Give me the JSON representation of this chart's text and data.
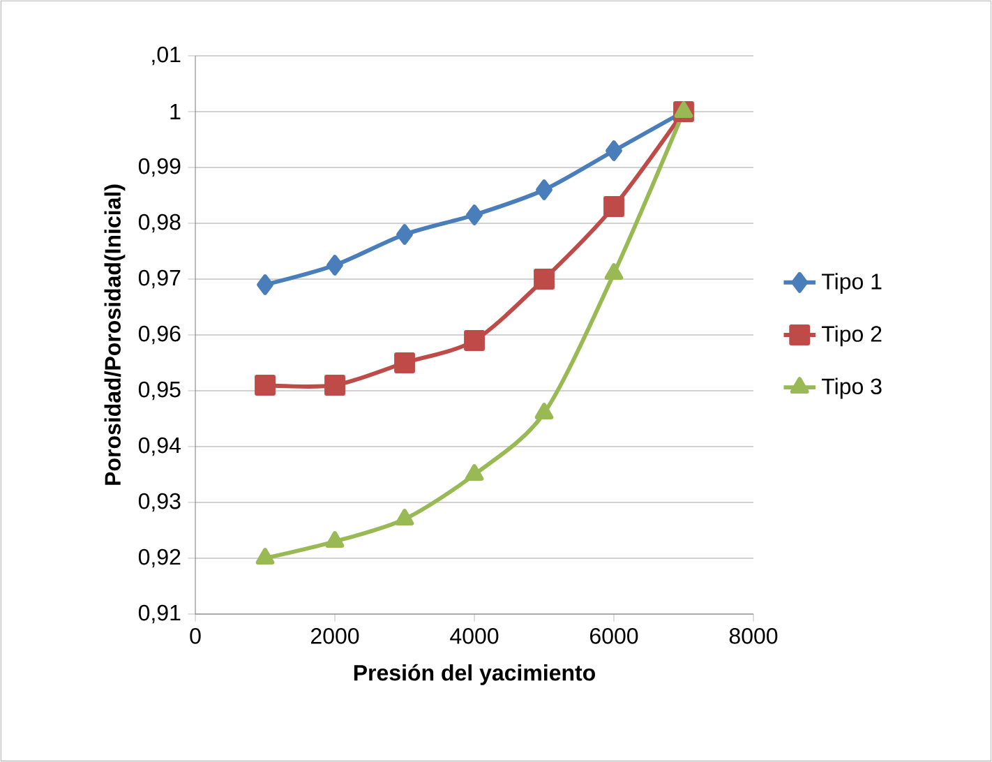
{
  "chart_data": {
    "type": "line",
    "xlabel": "Presión del yacimiento",
    "ylabel": "Porosidad/Porosidad(Inicial)",
    "x": [
      1000,
      2000,
      3000,
      4000,
      5000,
      6000,
      7000
    ],
    "series": [
      {
        "name": "Tipo 1",
        "color": "#4a7ebb",
        "marker": "diamond",
        "values": [
          0.969,
          0.9725,
          0.978,
          0.9815,
          0.986,
          0.993,
          1.0
        ]
      },
      {
        "name": "Tipo 2",
        "color": "#be4b48",
        "marker": "square",
        "values": [
          0.951,
          0.951,
          0.955,
          0.959,
          0.97,
          0.983,
          1.0
        ]
      },
      {
        "name": "Tipo 3",
        "color": "#98b954",
        "marker": "triangle",
        "values": [
          0.92,
          0.923,
          0.927,
          0.935,
          0.946,
          0.971,
          1.0
        ]
      }
    ],
    "xlim": [
      0,
      8000
    ],
    "xticks": [
      0,
      2000,
      4000,
      6000,
      8000
    ],
    "ylim": [
      0.91,
      1.01
    ],
    "yticks": [
      {
        "value": 0.91,
        "label": "0,91"
      },
      {
        "value": 0.92,
        "label": "0,92"
      },
      {
        "value": 0.93,
        "label": "0,93"
      },
      {
        "value": 0.94,
        "label": "0,94"
      },
      {
        "value": 0.95,
        "label": "0,95"
      },
      {
        "value": 0.96,
        "label": "0,96"
      },
      {
        "value": 0.97,
        "label": "0,97"
      },
      {
        "value": 0.98,
        "label": "0,98"
      },
      {
        "value": 0.99,
        "label": "0,99"
      },
      {
        "value": 1.0,
        "label": "1"
      },
      {
        "value": 1.01,
        "label": ",01"
      }
    ],
    "grid": "y",
    "legend": "right",
    "line_style": "solid"
  }
}
